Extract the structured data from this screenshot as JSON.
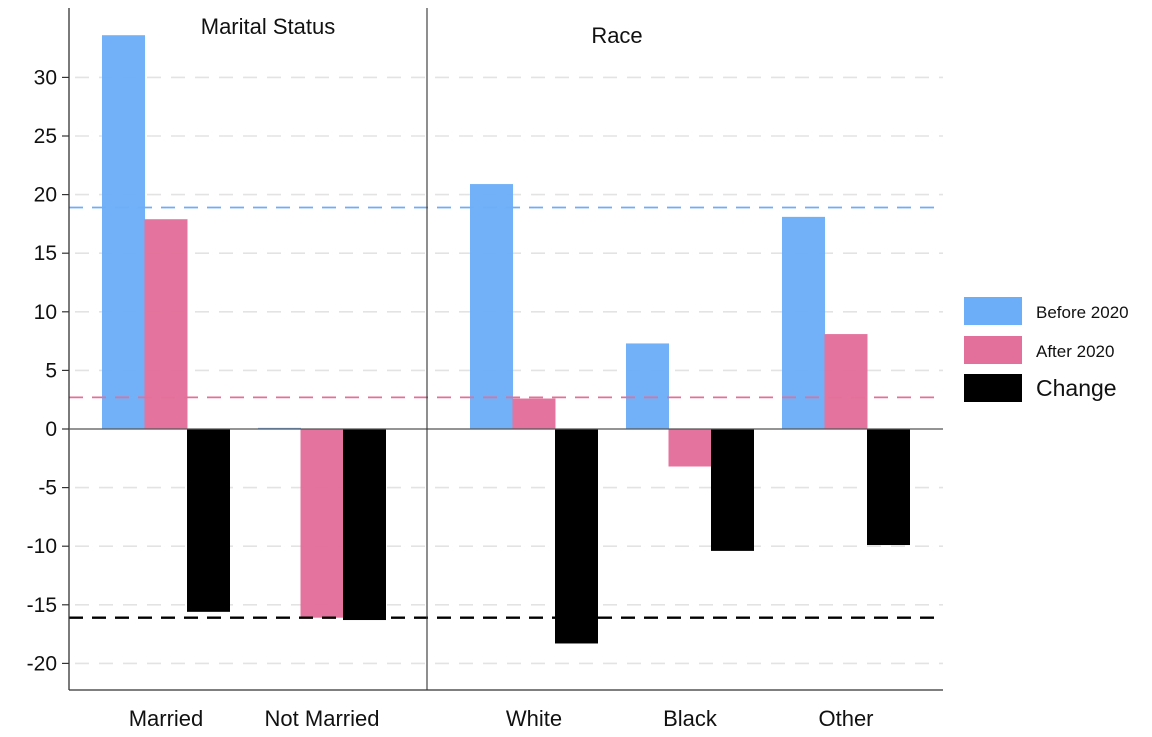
{
  "chart_data": {
    "type": "bar",
    "panels": [
      {
        "title": "Marital Status",
        "categories": [
          "Married",
          "Not Married"
        ]
      },
      {
        "title": "Race",
        "categories": [
          "White",
          "Black",
          "Other"
        ]
      }
    ],
    "categories": [
      "Married",
      "Not Married",
      "White",
      "Black",
      "Other"
    ],
    "series": [
      {
        "name": "Before 2020",
        "color": "#6daef8",
        "values": [
          33.6,
          0.1,
          20.9,
          7.3,
          18.1
        ]
      },
      {
        "name": "After 2020",
        "color": "#e3709a",
        "values": [
          17.9,
          -16.1,
          2.6,
          -3.2,
          8.1
        ]
      },
      {
        "name": "Change",
        "color": "#000000",
        "values": [
          -15.6,
          -16.3,
          -18.3,
          -10.4,
          -9.9
        ]
      }
    ],
    "reference_lines": [
      {
        "series": "Before 2020",
        "value": 18.9,
        "color": "#6daef8"
      },
      {
        "series": "After 2020",
        "value": 2.7,
        "color": "#e3709a"
      },
      {
        "series": "Change",
        "value": -16.1,
        "color": "#000000"
      }
    ],
    "y_ticks": [
      30,
      25,
      20,
      15,
      10,
      5,
      0,
      -5,
      -10,
      -15,
      -20
    ],
    "ylim": [
      -22.5,
      36.5
    ],
    "grid": "horizontal-dashed",
    "legend_position": "right"
  }
}
